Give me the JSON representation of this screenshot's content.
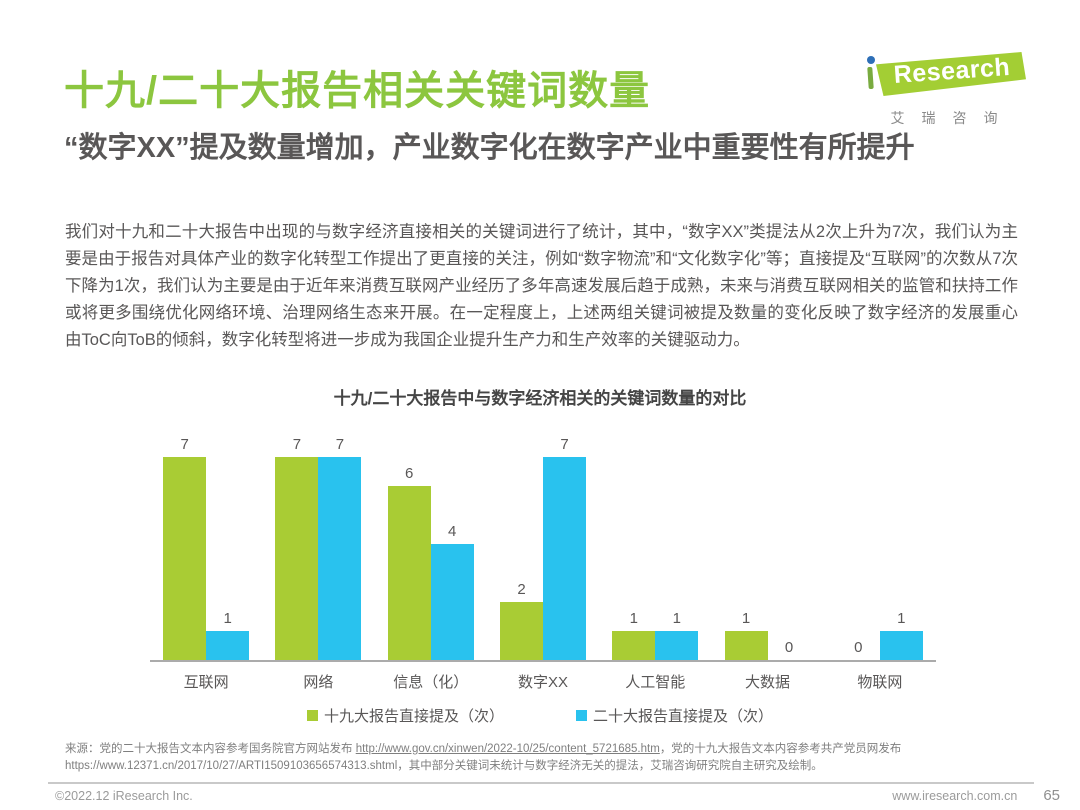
{
  "header": {
    "title": "十九/二十大报告相关关键词数量"
  },
  "logo": {
    "brand_en": "Research",
    "brand_cn": "艾瑞咨询"
  },
  "headline": {
    "subtitle": "“数字XX”提及数量增加，产业数字化在数字产业中重要性有所提升"
  },
  "body": {
    "paragraph": "我们对十九和二十大报告中出现的与数字经济直接相关的关键词进行了统计，其中，“数字XX”类提法从2次上升为7次，我们认为主要是由于报告对具体产业的数字化转型工作提出了更直接的关注，例如“数字物流”和“文化数字化”等；直接提及“互联网”的次数从7次下降为1次，我们认为主要是由于近年来消费互联网产业经历了多年高速发展后趋于成熟，未来与消费互联网相关的监管和扶持工作或将更多围绕优化网络环境、治理网络生态来开展。在一定程度上，上述两组关键词被提及数量的变化反映了数字经济的发展重心由ToC向ToB的倾斜，数字化转型将进一步成为我国企业提升生产力和生产效率的关键驱动力。"
  },
  "chart_data": {
    "type": "bar",
    "title": "十九/二十大报告中与数字经济相关的关键词数量的对比",
    "categories": [
      "互联网",
      "网络",
      "信息（化）",
      "数字XX",
      "人工智能",
      "大数据",
      "物联网"
    ],
    "series": [
      {
        "name": "十九大报告直接提及（次）",
        "color": "#a9cc34",
        "values": [
          7,
          7,
          6,
          2,
          1,
          1,
          0
        ]
      },
      {
        "name": "二十大报告直接提及（次）",
        "color": "#29c2ee",
        "values": [
          1,
          7,
          4,
          7,
          1,
          0,
          1
        ]
      }
    ],
    "ylim": [
      0,
      7
    ],
    "grid": false,
    "value_labels": true,
    "legend_position": "bottom"
  },
  "source": {
    "seg1": "来源：党的二十大报告文本内容参考国务院官方网站发布 ",
    "link1": "http://www.gov.cn/xinwen/2022-10/25/content_5721685.htm",
    "seg2": "，党的十九大报告文本内容参考共产党员网发布 https://www.12371.cn/2017/10/27/ARTI1509103656574313.shtml，其中部分关键词未统计与数字经济无关的提法，艾瑞咨询研究院自主研究及绘制。"
  },
  "footer": {
    "copyright": "©2022.12 iResearch Inc.",
    "website": "www.iresearch.com.cn",
    "page_number": "65"
  }
}
